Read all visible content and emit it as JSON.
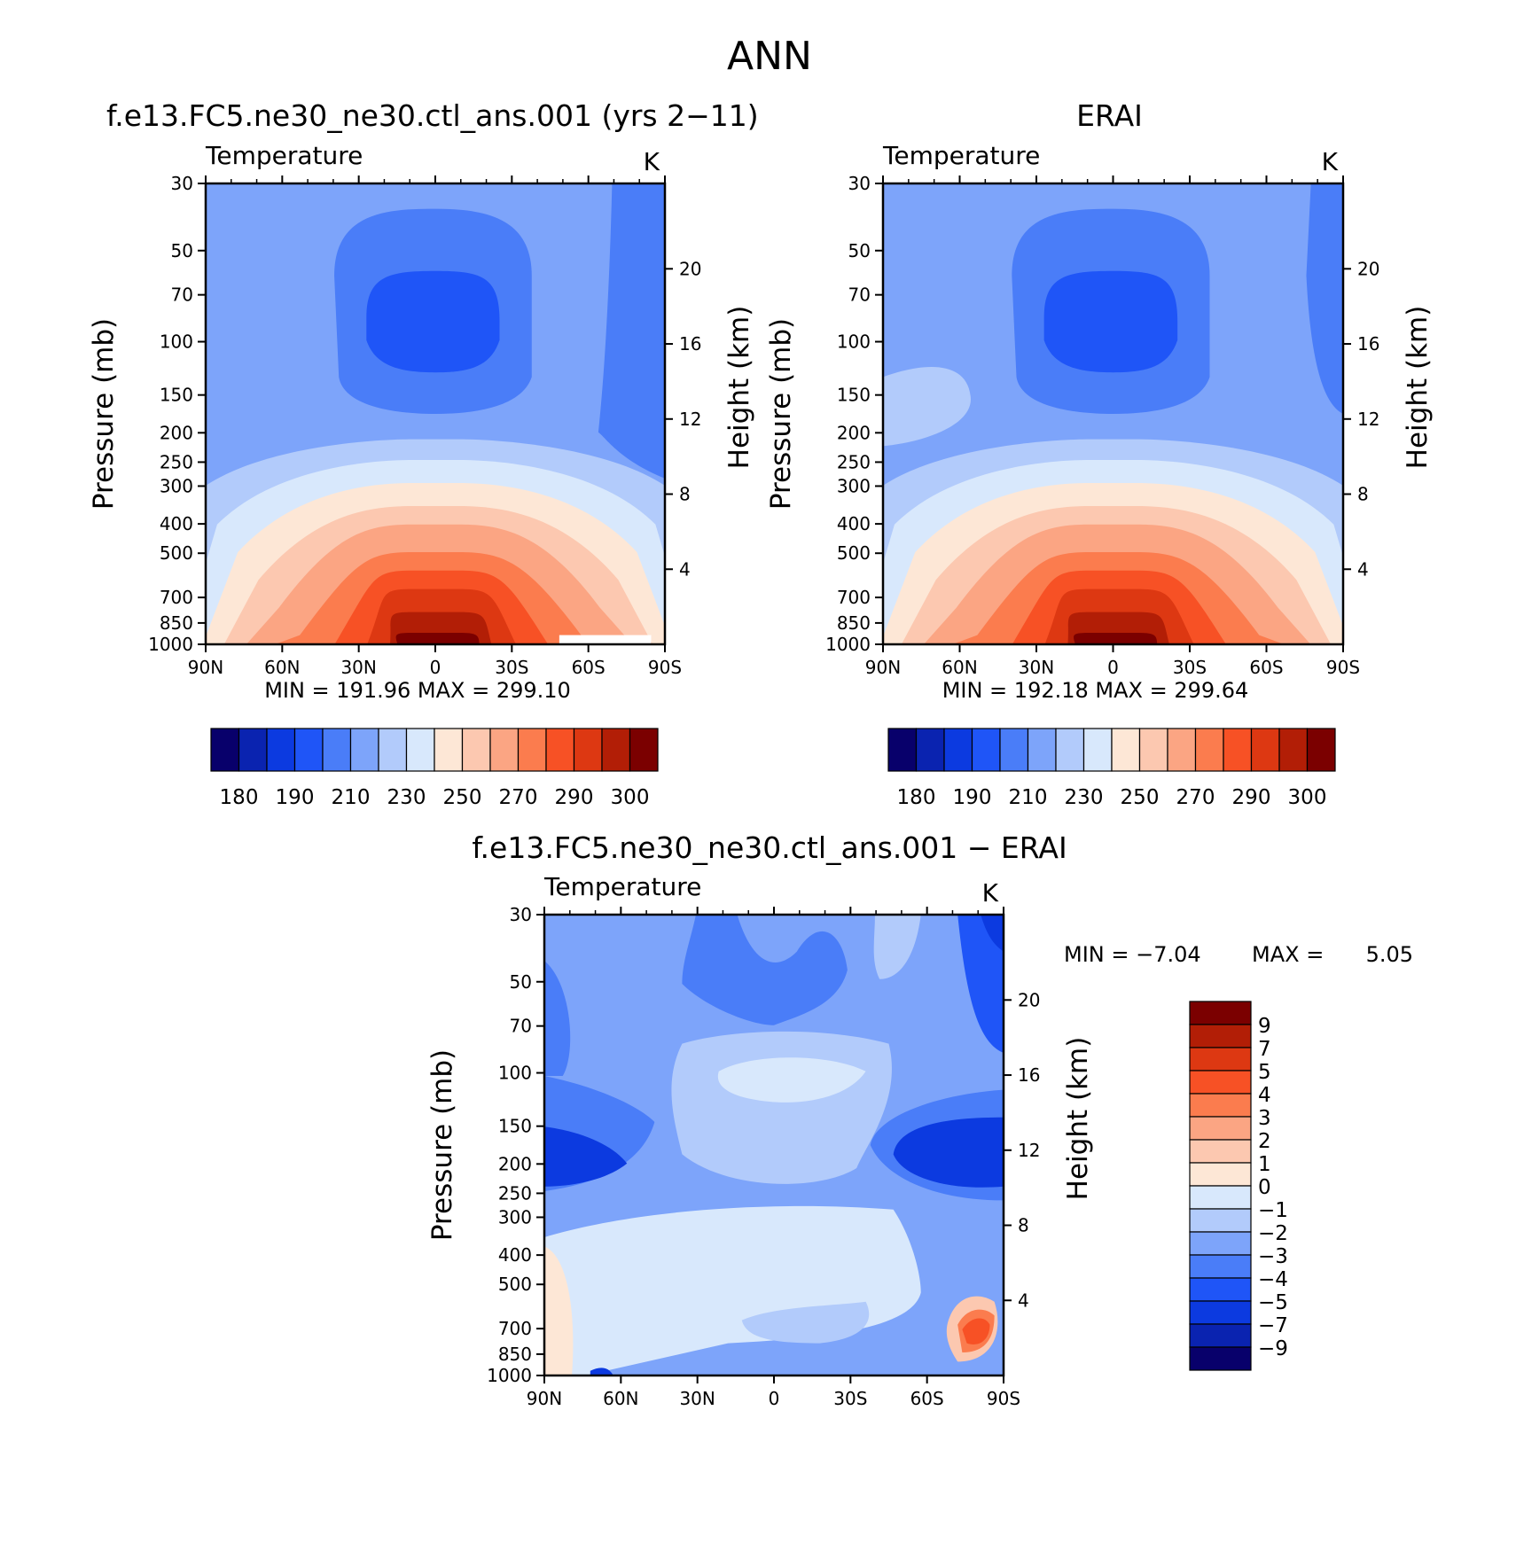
{
  "figure": {
    "season": "ANN"
  },
  "colors": {
    "abs_palette": [
      "#08006b",
      "#0a23b0",
      "#0c3ae0",
      "#1f55f7",
      "#4a7df8",
      "#7da4fa",
      "#b2cbfb",
      "#d8e8fc",
      "#fde7d6",
      "#fcc8b0",
      "#fba583",
      "#fb7c4e",
      "#f75125",
      "#dd3812",
      "#b21e06",
      "#7b0000"
    ],
    "diff_palette": [
      "#08006b",
      "#0a23b0",
      "#0c3ae0",
      "#1f55f7",
      "#4a7df8",
      "#7da4fa",
      "#b2cbfb",
      "#d8e8fc",
      "#fde7d6",
      "#fcc8b0",
      "#fba583",
      "#fb7c4e",
      "#f75125",
      "#dd3812",
      "#b21e06",
      "#7b0000"
    ]
  },
  "panels": [
    {
      "id": "model",
      "title": "f.e13.FC5.ne30_ne30.ctl_ans.001 (yrs 2−11)",
      "variable": "Temperature",
      "units": "K",
      "ylabel": "Pressure (mb)",
      "y2label": "Height (km)",
      "stats": {
        "min_label": "MIN =",
        "min": "191.96",
        "max_label": "MAX =",
        "max": "299.10"
      }
    },
    {
      "id": "obs",
      "title": "ERAI",
      "variable": "Temperature",
      "units": "K",
      "ylabel": "Pressure (mb)",
      "y2label": "Height (km)",
      "stats": {
        "min_label": "MIN =",
        "min": "192.18",
        "max_label": "MAX =",
        "max": "299.64"
      }
    },
    {
      "id": "diff",
      "title": "f.e13.FC5.ne30_ne30.ctl_ans.001 − ERAI",
      "variable": "Temperature",
      "units": "K",
      "ylabel": "Pressure (mb)",
      "y2label": "Height (km)",
      "stats": {
        "min_label": "MIN =",
        "min": "−7.04",
        "max_label": "MAX =",
        "max": "5.05"
      }
    }
  ],
  "chart_data": [
    {
      "type": "heatmap",
      "panel": "model",
      "title": "f.e13.FC5.ne30_ne30.ctl_ans.001 (yrs 2−11)",
      "x_ticks": [
        "90N",
        "60N",
        "30N",
        "0",
        "30S",
        "60S",
        "90S"
      ],
      "x_values": [
        90,
        60,
        30,
        0,
        -30,
        -60,
        -90
      ],
      "p_ticks": [
        "30",
        "50",
        "70",
        "100",
        "150",
        "200",
        "250",
        "300",
        "400",
        "500",
        "700",
        "850",
        "1000"
      ],
      "p_values": [
        30,
        50,
        70,
        100,
        150,
        200,
        250,
        300,
        400,
        500,
        700,
        850,
        1000
      ],
      "ylim": [
        1000,
        30
      ],
      "y_scale": "log",
      "height_ticks": [
        "4",
        "8",
        "12",
        "16",
        "20"
      ],
      "height_values": [
        4,
        8,
        12,
        16,
        20
      ],
      "contour_levels": [
        180,
        185,
        190,
        200,
        210,
        220,
        230,
        240,
        250,
        260,
        270,
        280,
        290,
        295,
        300
      ],
      "colorbar_labels": [
        "180",
        "190",
        "210",
        "230",
        "250",
        "270",
        "290",
        "300"
      ],
      "min": 191.96,
      "max": 299.1
    },
    {
      "type": "heatmap",
      "panel": "obs",
      "title": "ERAI",
      "x_ticks": [
        "90N",
        "60N",
        "30N",
        "0",
        "30S",
        "60S",
        "90S"
      ],
      "x_values": [
        90,
        60,
        30,
        0,
        -30,
        -60,
        -90
      ],
      "p_ticks": [
        "30",
        "50",
        "70",
        "100",
        "150",
        "200",
        "250",
        "300",
        "400",
        "500",
        "700",
        "850",
        "1000"
      ],
      "p_values": [
        30,
        50,
        70,
        100,
        150,
        200,
        250,
        300,
        400,
        500,
        700,
        850,
        1000
      ],
      "ylim": [
        1000,
        30
      ],
      "y_scale": "log",
      "height_ticks": [
        "4",
        "8",
        "12",
        "16",
        "20"
      ],
      "height_values": [
        4,
        8,
        12,
        16,
        20
      ],
      "contour_levels": [
        180,
        185,
        190,
        200,
        210,
        220,
        230,
        240,
        250,
        260,
        270,
        280,
        290,
        295,
        300
      ],
      "colorbar_labels": [
        "180",
        "190",
        "210",
        "230",
        "250",
        "270",
        "290",
        "300"
      ],
      "min": 192.18,
      "max": 299.64
    },
    {
      "type": "heatmap",
      "panel": "diff",
      "title": "f.e13.FC5.ne30_ne30.ctl_ans.001 − ERAI",
      "x_ticks": [
        "90N",
        "60N",
        "30N",
        "0",
        "30S",
        "60S",
        "90S"
      ],
      "x_values": [
        90,
        60,
        30,
        0,
        -30,
        -60,
        -90
      ],
      "p_ticks": [
        "30",
        "50",
        "70",
        "100",
        "150",
        "200",
        "250",
        "300",
        "400",
        "500",
        "700",
        "850",
        "1000"
      ],
      "p_values": [
        30,
        50,
        70,
        100,
        150,
        200,
        250,
        300,
        400,
        500,
        700,
        850,
        1000
      ],
      "ylim": [
        1000,
        30
      ],
      "y_scale": "log",
      "height_ticks": [
        "4",
        "8",
        "12",
        "16",
        "20"
      ],
      "height_values": [
        4,
        8,
        12,
        16,
        20
      ],
      "contour_levels": [
        -9,
        -7,
        -5,
        -4,
        -3,
        -2,
        -1,
        0,
        1,
        2,
        3,
        4,
        5,
        7,
        9
      ],
      "colorbar_labels": [
        "9",
        "7",
        "5",
        "4",
        "3",
        "2",
        "1",
        "0",
        "−1",
        "−2",
        "−3",
        "−4",
        "−5",
        "−7",
        "−9"
      ],
      "min": -7.04,
      "max": 5.05
    }
  ]
}
